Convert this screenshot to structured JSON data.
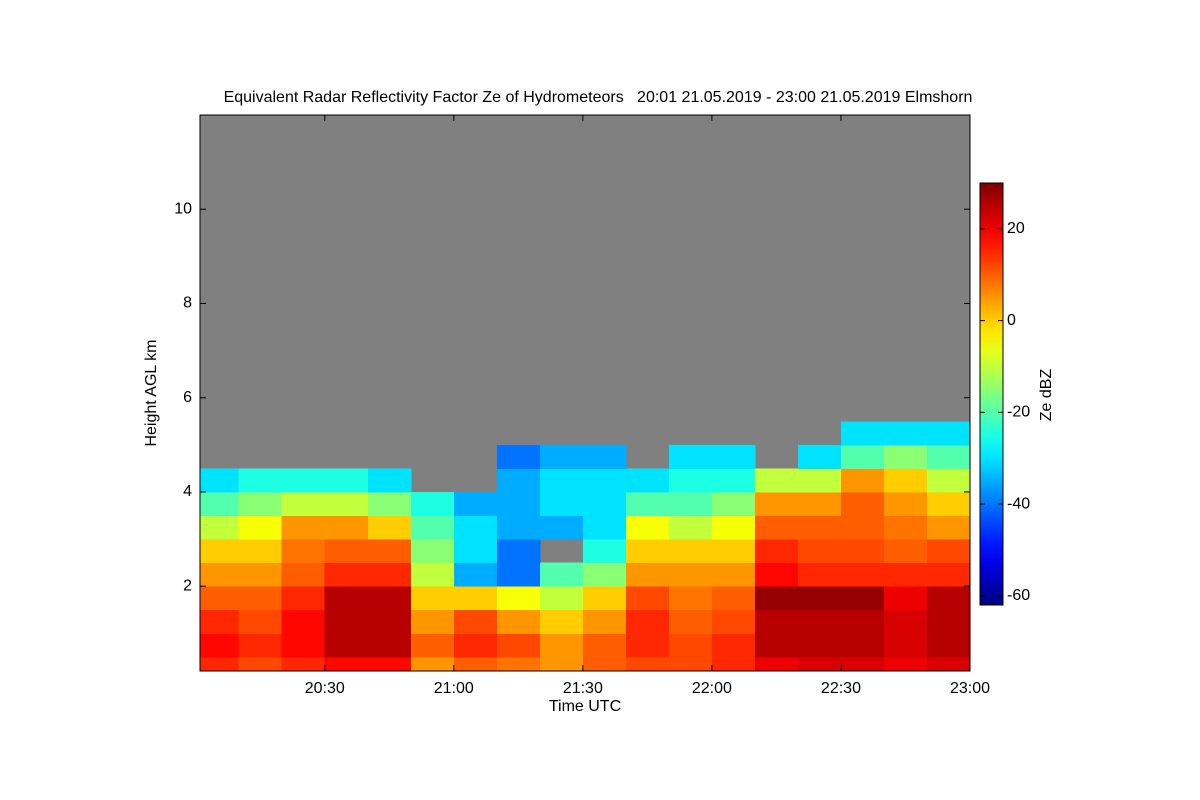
{
  "chart_data": {
    "type": "heatmap",
    "title": "Equivalent Radar Reflectivity Factor Ze of Hydrometeors   20:01 21.05.2019 - 23:00 21.05.2019 Elmshorn",
    "xlabel": "Time UTC",
    "ylabel": "Height AGL km",
    "zlabel": "Ze dBZ",
    "colormap": "jet",
    "background": "#808080",
    "x_edges": [
      1201,
      1210,
      1220,
      1230,
      1240,
      1250,
      1260,
      1270,
      1280,
      1290,
      1300,
      1310,
      1320,
      1330,
      1340,
      1350,
      1360,
      1370,
      1380
    ],
    "y_edges": [
      0.2,
      0.5,
      1,
      1.5,
      2,
      2.5,
      3,
      3.5,
      4,
      4.5,
      5,
      5.5
    ],
    "z": [
      [
        15,
        12,
        15,
        18,
        18,
        5,
        10,
        8,
        5,
        10,
        12,
        12,
        15,
        20,
        22,
        22,
        20,
        22
      ],
      [
        18,
        15,
        18,
        25,
        25,
        10,
        15,
        12,
        5,
        10,
        15,
        12,
        15,
        25,
        25,
        25,
        22,
        25
      ],
      [
        15,
        12,
        18,
        25,
        25,
        5,
        12,
        5,
        0,
        5,
        15,
        10,
        12,
        25,
        25,
        25,
        22,
        25
      ],
      [
        10,
        10,
        15,
        25,
        25,
        0,
        0,
        -5,
        -10,
        0,
        12,
        8,
        10,
        28,
        28,
        28,
        20,
        25
      ],
      [
        5,
        5,
        10,
        15,
        15,
        -10,
        -35,
        -40,
        -20,
        -15,
        5,
        5,
        5,
        18,
        15,
        15,
        15,
        15
      ],
      [
        0,
        0,
        8,
        10,
        10,
        -15,
        -30,
        -40,
        null,
        -25,
        0,
        0,
        0,
        15,
        12,
        12,
        10,
        12
      ],
      [
        -10,
        -5,
        5,
        5,
        0,
        -20,
        -30,
        -35,
        -35,
        -30,
        -5,
        -10,
        -5,
        10,
        10,
        10,
        8,
        5
      ],
      [
        -20,
        -15,
        -10,
        -10,
        -15,
        -25,
        -35,
        -35,
        -30,
        -30,
        -20,
        -20,
        -15,
        5,
        5,
        10,
        5,
        0
      ],
      [
        -30,
        -25,
        -25,
        -25,
        -30,
        null,
        null,
        -35,
        -30,
        -30,
        -30,
        -25,
        -25,
        -10,
        -10,
        5,
        0,
        -10
      ],
      [
        null,
        null,
        null,
        null,
        null,
        null,
        null,
        -40,
        -35,
        -35,
        null,
        -30,
        -30,
        null,
        -30,
        -20,
        -15,
        -20
      ],
      [
        null,
        null,
        null,
        null,
        null,
        null,
        null,
        null,
        null,
        null,
        null,
        null,
        null,
        null,
        null,
        -30,
        -30,
        -30
      ]
    ],
    "xlim": [
      1201,
      1380
    ],
    "xticks": [
      {
        "value": 1230,
        "label": "20:30"
      },
      {
        "value": 1260,
        "label": "21:00"
      },
      {
        "value": 1290,
        "label": "21:30"
      },
      {
        "value": 1320,
        "label": "22:00"
      },
      {
        "value": 1350,
        "label": "22:30"
      },
      {
        "value": 1380,
        "label": "23:00"
      }
    ],
    "ylim": [
      0.2,
      12
    ],
    "yticks": [
      2,
      4,
      6,
      8,
      10
    ],
    "zlim": [
      -62,
      30
    ],
    "zticks": [
      -60,
      -40,
      -20,
      0,
      20
    ]
  }
}
